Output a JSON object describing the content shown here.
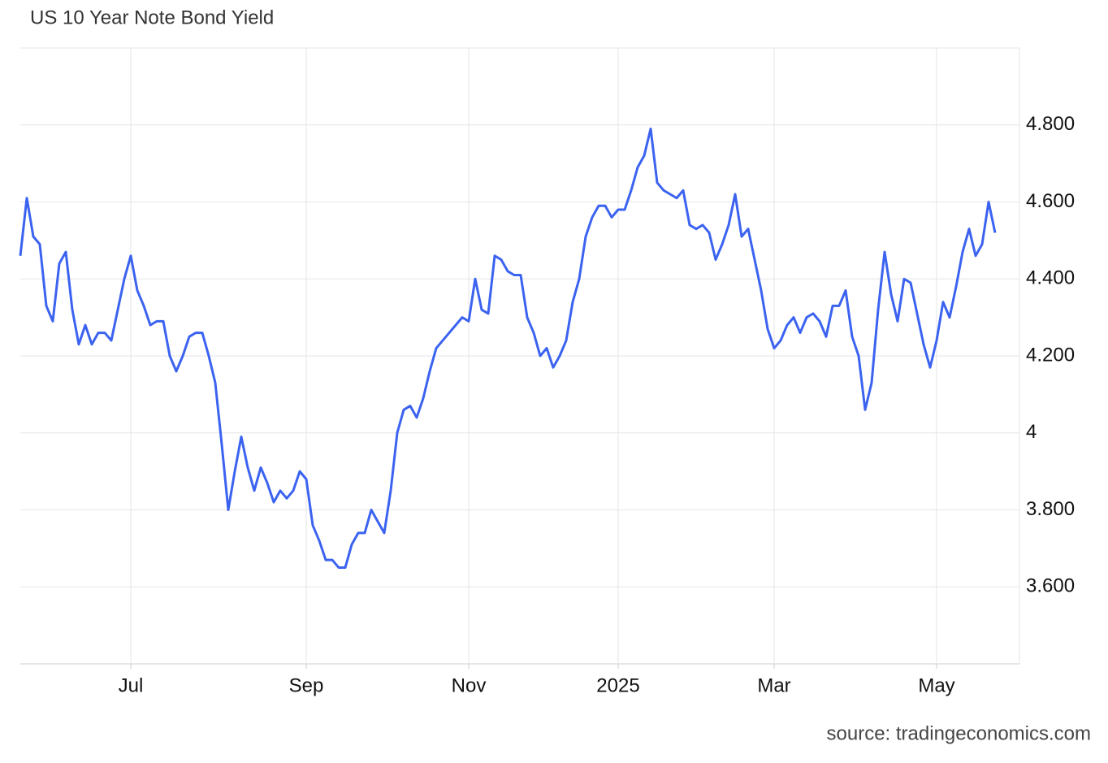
{
  "chart_data": {
    "type": "line",
    "title": "US 10 Year Note Bond Yield",
    "source": "source: tradingeconomics.com",
    "categories": [
      null,
      null,
      null,
      null,
      null,
      null,
      null,
      null,
      null,
      null,
      null,
      null,
      null,
      null,
      null,
      null,
      null,
      "Jul",
      null,
      null,
      null,
      null,
      null,
      null,
      null,
      null,
      null,
      null,
      null,
      null,
      null,
      null,
      null,
      null,
      null,
      null,
      null,
      null,
      null,
      null,
      null,
      null,
      null,
      null,
      "Sep",
      null,
      null,
      null,
      null,
      null,
      null,
      null,
      null,
      null,
      null,
      null,
      null,
      null,
      null,
      null,
      null,
      null,
      null,
      null,
      null,
      null,
      null,
      null,
      null,
      "Nov",
      null,
      null,
      null,
      null,
      null,
      null,
      null,
      null,
      null,
      null,
      null,
      null,
      null,
      null,
      null,
      null,
      null,
      null,
      null,
      null,
      null,
      null,
      "2025",
      null,
      null,
      null,
      null,
      null,
      null,
      null,
      null,
      null,
      null,
      null,
      null,
      null,
      null,
      null,
      null,
      null,
      null,
      null,
      null,
      null,
      null,
      null,
      "Mar",
      null,
      null,
      null,
      null,
      null,
      null,
      null,
      null,
      null,
      null,
      null,
      null,
      null,
      null,
      null,
      null,
      null,
      null,
      null,
      null,
      null,
      null,
      null,
      null,
      "May",
      null,
      null,
      null,
      null,
      null,
      null,
      null,
      null,
      null
    ],
    "series": [
      {
        "color": "#3b63f0",
        "values": [
          4.46,
          4.61,
          4.51,
          4.49,
          4.33,
          4.29,
          4.44,
          4.47,
          4.32,
          4.23,
          4.28,
          4.23,
          4.26,
          4.26,
          4.24,
          4.32,
          4.4,
          4.46,
          4.37,
          4.33,
          4.28,
          4.29,
          4.29,
          4.2,
          4.16,
          4.2,
          4.25,
          4.26,
          4.26,
          4.2,
          4.13,
          3.97,
          3.8,
          3.9,
          3.99,
          3.91,
          3.85,
          3.91,
          3.87,
          3.82,
          3.85,
          3.83,
          3.85,
          3.9,
          3.88,
          3.76,
          3.72,
          3.67,
          3.67,
          3.65,
          3.65,
          3.71,
          3.74,
          3.74,
          3.8,
          3.77,
          3.74,
          3.85,
          4.0,
          4.06,
          4.07,
          4.04,
          4.09,
          4.16,
          4.22,
          4.24,
          4.26,
          4.28,
          4.3,
          4.29,
          4.4,
          4.32,
          4.31,
          4.46,
          4.45,
          4.42,
          4.41,
          4.41,
          4.3,
          4.26,
          4.2,
          4.22,
          4.17,
          4.2,
          4.24,
          4.34,
          4.4,
          4.51,
          4.56,
          4.59,
          4.59,
          4.56,
          4.58,
          4.58,
          4.63,
          4.69,
          4.72,
          4.79,
          4.65,
          4.63,
          4.62,
          4.61,
          4.63,
          4.54,
          4.53,
          4.54,
          4.52,
          4.45,
          4.49,
          4.54,
          4.62,
          4.51,
          4.53,
          4.45,
          4.37,
          4.27,
          4.22,
          4.24,
          4.28,
          4.3,
          4.26,
          4.3,
          4.31,
          4.29,
          4.25,
          4.33,
          4.33,
          4.37,
          4.25,
          4.2,
          4.06,
          4.13,
          4.32,
          4.47,
          4.36,
          4.29,
          4.4,
          4.39,
          4.31,
          4.23,
          4.17,
          4.24,
          4.34,
          4.3,
          4.38,
          4.47,
          4.53,
          4.46,
          4.49,
          4.6,
          4.52
        ]
      }
    ],
    "ylim": [
      3.4,
      5.0
    ],
    "yticks": [
      {
        "value": 3.6,
        "label": "3.600"
      },
      {
        "value": 3.8,
        "label": "3.800"
      },
      4,
      {
        "value": 4.2,
        "label": "4.200"
      },
      {
        "value": 4.4,
        "label": "4.400"
      },
      {
        "value": 4.6,
        "label": "4.600"
      },
      {
        "value": 4.8,
        "label": "4.800"
      }
    ],
    "grid": true
  }
}
